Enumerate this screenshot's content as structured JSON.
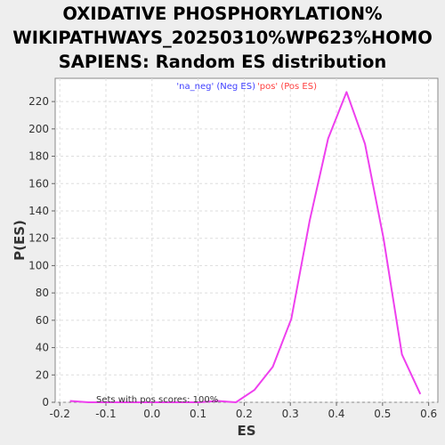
{
  "title_lines": [
    "OXIDATIVE PHOSPHORYLATION%",
    "WIKIPATHWAYS_20250310%WP623%HOMO",
    "SAPIENS: Random ES distribution"
  ],
  "legend": {
    "neg_label": "'na_neg' (Neg ES)",
    "pos_label": "'pos' (Pos ES)",
    "neg_color": "#4040ff",
    "pos_color": "#ff4040"
  },
  "annotation": "Sets with pos scores: 100%",
  "colors": {
    "line": "#ee40ee",
    "background": "#eeeeee",
    "plot_bg": "#ffffff",
    "grid": "#dddddd"
  },
  "chart_data": {
    "type": "line",
    "title": "OXIDATIVE PHOSPHORYLATION% WIKIPATHWAYS_20250310%WP623%HOMO SAPIENS: Random ES distribution",
    "xlabel": "ES",
    "ylabel": "P(ES)",
    "xlim": [
      -0.21,
      0.62
    ],
    "ylim": [
      0,
      237
    ],
    "x_ticks": [
      -0.2,
      -0.1,
      0.0,
      0.1,
      0.2,
      0.3,
      0.4,
      0.5,
      0.6
    ],
    "x_tick_labels": [
      "-0.2",
      "-0.1",
      "0.0",
      "0.1",
      "0.2",
      "0.3",
      "0.4",
      "0.5",
      "0.6"
    ],
    "y_ticks": [
      0,
      20,
      40,
      60,
      80,
      100,
      120,
      140,
      160,
      180,
      200,
      220
    ],
    "y_tick_labels": [
      "0",
      "20",
      "40",
      "60",
      "80",
      "100",
      "120",
      "140",
      "160",
      "180",
      "200",
      "220"
    ],
    "grid": true,
    "series": [
      {
        "name": "",
        "x": [
          -0.178,
          -0.138,
          -0.098,
          -0.058,
          -0.018,
          0.022,
          0.062,
          0.102,
          0.142,
          0.182,
          0.222,
          0.262,
          0.302,
          0.342,
          0.382,
          0.422,
          0.462,
          0.502,
          0.542,
          0.582
        ],
        "y": [
          1,
          0,
          0,
          0,
          0,
          0,
          0,
          0,
          1,
          0,
          9,
          26,
          61,
          133,
          193,
          227,
          189,
          120,
          35,
          6
        ]
      }
    ]
  }
}
